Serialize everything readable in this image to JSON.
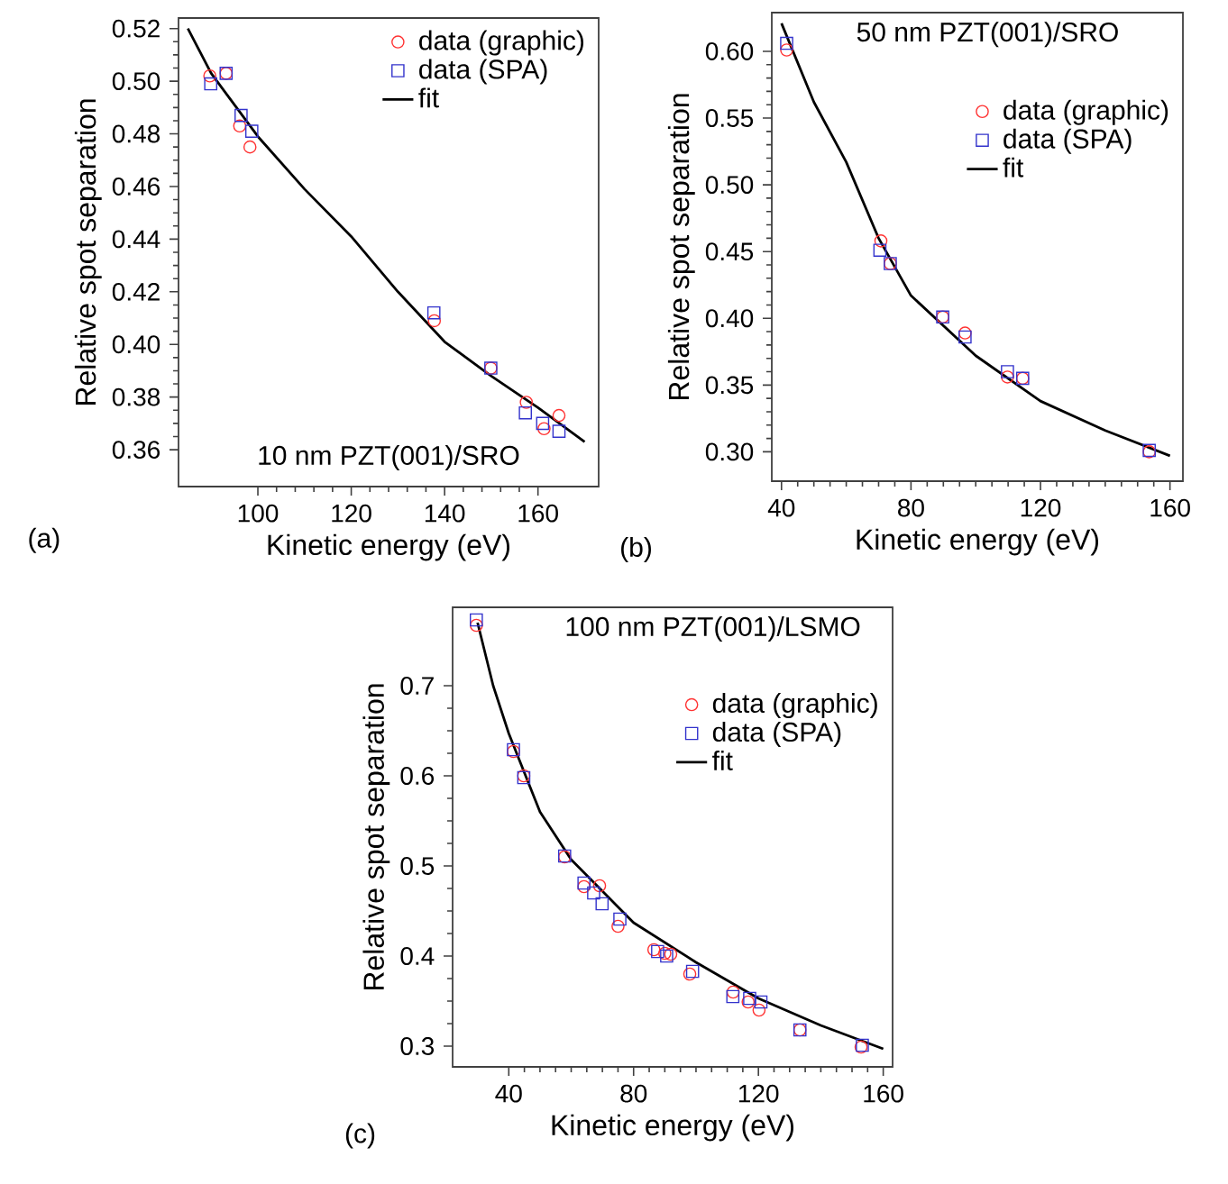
{
  "chart_data": [
    {
      "type": "scatter",
      "xlabel": "Kinetic energy (eV)",
      "ylabel": "Relative spot separation",
      "annotations": [
        "10 nm PZT(001)/SRO",
        "(a)"
      ],
      "xlim": [
        83,
        173
      ],
      "ylim": [
        0.346,
        0.524
      ],
      "xticks": [
        100,
        120,
        140,
        160
      ],
      "yticks": [
        0.36,
        0.38,
        {
          "value": 0.4,
          "label": "0.40"
        },
        0.42,
        0.44,
        0.46,
        0.48,
        {
          "value": 0.5,
          "label": "0.50"
        },
        0.52
      ],
      "legend": "top right",
      "series": [
        {
          "name": "data (graphic)",
          "color": "#ff3333",
          "marker": "circle",
          "x": [
            89.7,
            93.2,
            96.1,
            98.3,
            137.8,
            149.9,
            157.5,
            161.3,
            164.5
          ],
          "values": [
            0.502,
            0.503,
            0.483,
            0.475,
            0.409,
            0.391,
            0.378,
            0.368,
            0.373
          ]
        },
        {
          "name": "data (SPA)",
          "color": "#3333cc",
          "marker": "square",
          "x": [
            89.9,
            93.2,
            96.4,
            98.7,
            137.7,
            149.9,
            157.3,
            161.0,
            164.5
          ],
          "values": [
            0.499,
            0.503,
            0.487,
            0.481,
            0.412,
            0.391,
            0.374,
            0.37,
            0.367
          ]
        },
        {
          "name": "fit",
          "type": "line",
          "color": "#000000",
          "marker": "none",
          "x": [
            85,
            90,
            100,
            110,
            120,
            130,
            140,
            150,
            160,
            170
          ],
          "values": [
            0.52,
            0.503,
            0.479,
            0.459,
            0.441,
            0.42,
            0.401,
            0.388,
            0.376,
            0.363
          ]
        }
      ]
    },
    {
      "type": "scatter",
      "xlabel": "Kinetic energy (eV)",
      "ylabel": "Relative spot separation",
      "annotations": [
        "50 nm PZT(001)/SRO",
        "(b)"
      ],
      "xlim": [
        37,
        164
      ],
      "ylim": [
        0.278,
        0.629
      ],
      "xticks": [
        40,
        80,
        120,
        160
      ],
      "yticks": [
        {
          "value": 0.3,
          "label": "0.30"
        },
        0.35,
        {
          "value": 0.4,
          "label": "0.40"
        },
        0.45,
        {
          "value": 0.5,
          "label": "0.50"
        },
        0.55,
        {
          "value": 0.6,
          "label": "0.60"
        }
      ],
      "legend": "top right",
      "series": [
        {
          "name": "data (graphic)",
          "color": "#ff3333",
          "marker": "circle",
          "x": [
            41.6,
            70.7,
            73.6,
            89.8,
            96.7,
            109.8,
            114.5,
            153.6
          ],
          "values": [
            0.601,
            0.458,
            0.441,
            0.401,
            0.389,
            0.356,
            0.355,
            0.3
          ]
        },
        {
          "name": "data (SPA)",
          "color": "#3333cc",
          "marker": "square",
          "x": [
            41.6,
            70.4,
            73.6,
            89.8,
            96.7,
            109.8,
            114.5,
            153.6
          ],
          "values": [
            0.606,
            0.451,
            0.441,
            0.401,
            0.386,
            0.36,
            0.355,
            0.301
          ]
        },
        {
          "name": "fit",
          "type": "line",
          "color": "#000000",
          "marker": "none",
          "x": [
            40,
            50,
            60,
            70,
            80,
            100,
            120,
            140,
            160
          ],
          "values": [
            0.621,
            0.562,
            0.517,
            0.46,
            0.417,
            0.372,
            0.338,
            0.316,
            0.297
          ]
        }
      ]
    },
    {
      "type": "scatter",
      "xlabel": "Kinetic energy (eV)",
      "ylabel": "Relative spot separation",
      "annotations": [
        "100 nm PZT(001)/LSMO",
        "(c)"
      ],
      "xlim": [
        22,
        163
      ],
      "ylim": [
        0.277,
        0.787
      ],
      "xticks": [
        40,
        80,
        120,
        160
      ],
      "yticks": [
        0.3,
        0.4,
        0.5,
        0.6,
        0.7
      ],
      "legend": "top right",
      "series": [
        {
          "name": "data (graphic)",
          "color": "#ff3333",
          "marker": "circle",
          "x": [
            29.6,
            41.5,
            44.8,
            57.9,
            64.1,
            69.1,
            75.0,
            86.5,
            90.0,
            91.9,
            98.0,
            111.9,
            116.7,
            120.2,
            133.3,
            152.9
          ],
          "values": [
            0.767,
            0.627,
            0.6,
            0.51,
            0.477,
            0.478,
            0.433,
            0.407,
            0.403,
            0.402,
            0.38,
            0.36,
            0.349,
            0.34,
            0.318,
            0.299
          ]
        },
        {
          "name": "data (SPA)",
          "color": "#3333cc",
          "marker": "square",
          "x": [
            29.6,
            41.5,
            44.8,
            57.9,
            64.1,
            67.2,
            69.9,
            75.6,
            87.7,
            90.6,
            98.9,
            111.8,
            117.2,
            120.8,
            133.3,
            153.3
          ],
          "values": [
            0.773,
            0.629,
            0.598,
            0.511,
            0.481,
            0.47,
            0.458,
            0.441,
            0.405,
            0.4,
            0.383,
            0.355,
            0.353,
            0.349,
            0.318,
            0.301
          ]
        },
        {
          "name": "fit",
          "type": "line",
          "color": "#000000",
          "marker": "none",
          "x": [
            30,
            35,
            40,
            50,
            60,
            80,
            100,
            120,
            140,
            160
          ],
          "values": [
            0.77,
            0.7,
            0.647,
            0.56,
            0.507,
            0.437,
            0.393,
            0.353,
            0.323,
            0.297
          ]
        }
      ]
    }
  ]
}
